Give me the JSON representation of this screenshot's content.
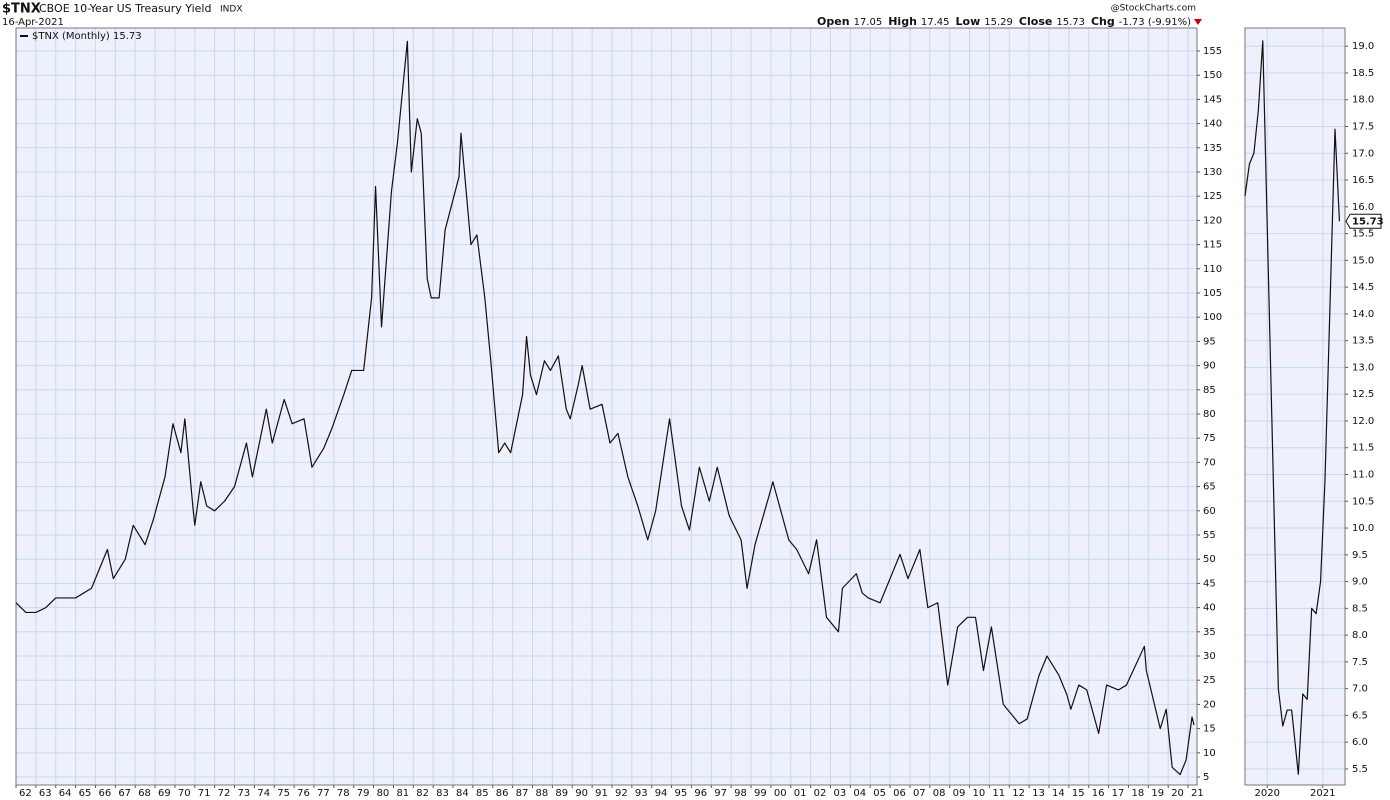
{
  "header": {
    "symbol": "$TNX",
    "title": "CBOE 10-Year US Treasury Yield",
    "exchange": "INDX",
    "date": "16-Apr-2021",
    "source": "@StockCharts.com",
    "quote": [
      {
        "label": "Open",
        "value": "17.05"
      },
      {
        "label": "High",
        "value": "17.45"
      },
      {
        "label": "Low",
        "value": "15.29"
      },
      {
        "label": "Close",
        "value": "15.73"
      },
      {
        "label": "Chg",
        "value": "-1.73 (-9.91%)"
      }
    ]
  },
  "chart_data": [
    {
      "type": "line",
      "grid": true,
      "x": [
        1962.0,
        1962.5,
        1963.0,
        1963.5,
        1964.0,
        1965.0,
        1965.8,
        1966.6,
        1966.9,
        1967.5,
        1967.9,
        1968.5,
        1968.9,
        1969.5,
        1969.9,
        1970.3,
        1970.5,
        1970.9,
        1971.0,
        1971.3,
        1971.6,
        1972.0,
        1972.5,
        1973.0,
        1973.6,
        1973.9,
        1974.6,
        1974.9,
        1975.5,
        1975.9,
        1976.5,
        1976.9,
        1977.5,
        1977.9,
        1978.5,
        1978.9,
        1979.5,
        1979.9,
        1980.1,
        1980.4,
        1980.9,
        1981.2,
        1981.7,
        1981.9,
        1982.2,
        1982.4,
        1982.7,
        1982.9,
        1983.3,
        1983.6,
        1984.3,
        1984.4,
        1984.9,
        1985.2,
        1985.6,
        1985.9,
        1986.3,
        1986.6,
        1986.9,
        1987.5,
        1987.7,
        1987.9,
        1988.2,
        1988.6,
        1988.9,
        1989.3,
        1989.7,
        1989.9,
        1990.3,
        1990.5,
        1990.9,
        1991.5,
        1991.9,
        1992.3,
        1992.8,
        1993.3,
        1993.8,
        1994.2,
        1994.9,
        1995.5,
        1995.9,
        1996.4,
        1996.9,
        1997.3,
        1997.9,
        1998.5,
        1998.8,
        1999.2,
        1999.9,
        2000.1,
        2000.9,
        2001.3,
        2001.9,
        2002.3,
        2002.8,
        2003.4,
        2003.6,
        2004.3,
        2004.6,
        2004.9,
        2005.5,
        2005.9,
        2006.5,
        2006.9,
        2007.5,
        2007.9,
        2008.4,
        2008.9,
        2009.4,
        2009.9,
        2010.3,
        2010.7,
        2011.1,
        2011.7,
        2011.9,
        2012.5,
        2012.9,
        2013.5,
        2013.9,
        2014.5,
        2014.9,
        2015.1,
        2015.5,
        2015.9,
        2016.5,
        2016.9,
        2017.5,
        2017.9,
        2018.8,
        2018.9,
        2019.6,
        2019.9,
        2020.2,
        2020.6,
        2020.9,
        2021.2,
        2021.3
      ],
      "series": [
        {
          "name": "$TNX (Monthly) 15.73",
          "color": "#111111",
          "values": [
            41,
            39,
            39,
            40,
            42,
            42,
            44,
            52,
            46,
            50,
            57,
            53,
            58,
            67,
            78,
            72,
            79,
            61,
            57,
            66,
            61,
            60,
            62,
            65,
            74,
            67,
            81,
            74,
            83,
            78,
            79,
            69,
            73,
            77,
            84,
            89,
            89,
            104,
            127,
            98,
            126,
            136,
            157,
            130,
            141,
            138,
            108,
            104,
            104,
            118,
            129,
            138,
            115,
            117,
            104,
            91,
            72,
            74,
            72,
            84,
            96,
            88,
            84,
            91,
            89,
            92,
            81,
            79,
            86,
            90,
            81,
            82,
            74,
            76,
            67,
            61,
            54,
            60,
            79,
            61,
            56,
            69,
            62,
            69,
            59,
            54,
            44,
            53,
            63,
            66,
            54,
            52,
            47,
            54,
            38,
            35,
            44,
            47,
            43,
            42,
            41,
            45,
            51,
            46,
            52,
            40,
            41,
            24,
            36,
            38,
            38,
            27,
            36,
            20,
            19,
            16,
            17,
            26,
            30,
            26,
            22,
            19,
            24,
            23,
            14,
            24,
            23,
            24,
            32,
            27,
            15,
            19,
            7,
            5.5,
            8.5,
            17.4,
            15.73
          ]
        }
      ],
      "xlim": [
        1962,
        2021.45
      ],
      "xticks": [
        {
          "value": 1962,
          "label": "62"
        },
        {
          "value": 1963,
          "label": "63"
        },
        {
          "value": 1964,
          "label": "64"
        },
        {
          "value": 1965,
          "label": "65"
        },
        {
          "value": 1966,
          "label": "66"
        },
        {
          "value": 1967,
          "label": "67"
        },
        {
          "value": 1968,
          "label": "68"
        },
        {
          "value": 1969,
          "label": "69"
        },
        {
          "value": 1970,
          "label": "70"
        },
        {
          "value": 1971,
          "label": "71"
        },
        {
          "value": 1972,
          "label": "72"
        },
        {
          "value": 1973,
          "label": "73"
        },
        {
          "value": 1974,
          "label": "74"
        },
        {
          "value": 1975,
          "label": "75"
        },
        {
          "value": 1976,
          "label": "76"
        },
        {
          "value": 1977,
          "label": "77"
        },
        {
          "value": 1978,
          "label": "78"
        },
        {
          "value": 1979,
          "label": "79"
        },
        {
          "value": 1980,
          "label": "80"
        },
        {
          "value": 1981,
          "label": "81"
        },
        {
          "value": 1982,
          "label": "82"
        },
        {
          "value": 1983,
          "label": "83"
        },
        {
          "value": 1984,
          "label": "84"
        },
        {
          "value": 1985,
          "label": "85"
        },
        {
          "value": 1986,
          "label": "86"
        },
        {
          "value": 1987,
          "label": "87"
        },
        {
          "value": 1988,
          "label": "88"
        },
        {
          "value": 1989,
          "label": "89"
        },
        {
          "value": 1990,
          "label": "90"
        },
        {
          "value": 1991,
          "label": "91"
        },
        {
          "value": 1992,
          "label": "92"
        },
        {
          "value": 1993,
          "label": "93"
        },
        {
          "value": 1994,
          "label": "94"
        },
        {
          "value": 1995,
          "label": "95"
        },
        {
          "value": 1996,
          "label": "96"
        },
        {
          "value": 1997,
          "label": "97"
        },
        {
          "value": 1998,
          "label": "98"
        },
        {
          "value": 1999,
          "label": "99"
        },
        {
          "value": 2000,
          "label": "00"
        },
        {
          "value": 2001,
          "label": "01"
        },
        {
          "value": 2002,
          "label": "02"
        },
        {
          "value": 2003,
          "label": "03"
        },
        {
          "value": 2004,
          "label": "04"
        },
        {
          "value": 2005,
          "label": "05"
        },
        {
          "value": 2006,
          "label": "06"
        },
        {
          "value": 2007,
          "label": "07"
        },
        {
          "value": 2008,
          "label": "08"
        },
        {
          "value": 2009,
          "label": "09"
        },
        {
          "value": 2010,
          "label": "10"
        },
        {
          "value": 2011,
          "label": "11"
        },
        {
          "value": 2012,
          "label": "12"
        },
        {
          "value": 2013,
          "label": "13"
        },
        {
          "value": 2014,
          "label": "14"
        },
        {
          "value": 2015,
          "label": "15"
        },
        {
          "value": 2016,
          "label": "16"
        },
        {
          "value": 2017,
          "label": "17"
        },
        {
          "value": 2018,
          "label": "18"
        },
        {
          "value": 2019,
          "label": "19"
        },
        {
          "value": 2020,
          "label": "20"
        },
        {
          "value": 2021,
          "label": "21"
        }
      ],
      "ylim": [
        3.35,
        159.75
      ],
      "yticks": [
        5,
        10,
        15,
        20,
        25,
        30,
        35,
        40,
        45,
        50,
        55,
        60,
        65,
        70,
        75,
        80,
        85,
        90,
        95,
        100,
        105,
        110,
        115,
        120,
        125,
        130,
        135,
        140,
        145,
        150,
        155
      ]
    },
    {
      "type": "line",
      "grid": true,
      "x": [
        2019.6,
        2019.68,
        2019.76,
        2019.84,
        2019.92,
        2020.2,
        2020.28,
        2020.36,
        2020.44,
        2020.56,
        2020.64,
        2020.72,
        2020.8,
        2020.88,
        2020.96,
        2021.04,
        2021.12,
        2021.22,
        2021.3
      ],
      "series": [
        {
          "color": "#111111",
          "values": [
            16.2,
            16.8,
            17.0,
            17.8,
            19.1,
            7.0,
            6.3,
            6.6,
            6.6,
            5.4,
            6.9,
            6.8,
            8.5,
            8.4,
            9.0,
            10.9,
            13.8,
            17.45,
            15.73
          ]
        }
      ],
      "last_value_label": "15.73",
      "xlim": [
        2019.6,
        2021.4
      ],
      "xticks": [
        {
          "value": 2020,
          "label": "2020"
        },
        {
          "value": 2021,
          "label": "2021"
        }
      ],
      "ylim": [
        5.2,
        19.34
      ],
      "yticks": [
        5.5,
        {
          "value": 6,
          "label": "6.0"
        },
        6.5,
        {
          "value": 7,
          "label": "7.0"
        },
        7.5,
        {
          "value": 8,
          "label": "8.0"
        },
        8.5,
        {
          "value": 9,
          "label": "9.0"
        },
        9.5,
        {
          "value": 10,
          "label": "10.0"
        },
        10.5,
        {
          "value": 11,
          "label": "11.0"
        },
        11.5,
        {
          "value": 12,
          "label": "12.0"
        },
        12.5,
        {
          "value": 13,
          "label": "13.0"
        },
        13.5,
        {
          "value": 14,
          "label": "14.0"
        },
        14.5,
        {
          "value": 15,
          "label": "15.0"
        },
        15.5,
        {
          "value": 16,
          "label": "16.0"
        },
        16.5,
        {
          "value": 17,
          "label": "17.0"
        },
        17.5,
        {
          "value": 18,
          "label": "18.0"
        },
        18.5,
        {
          "value": 19,
          "label": "19.0"
        }
      ]
    }
  ]
}
